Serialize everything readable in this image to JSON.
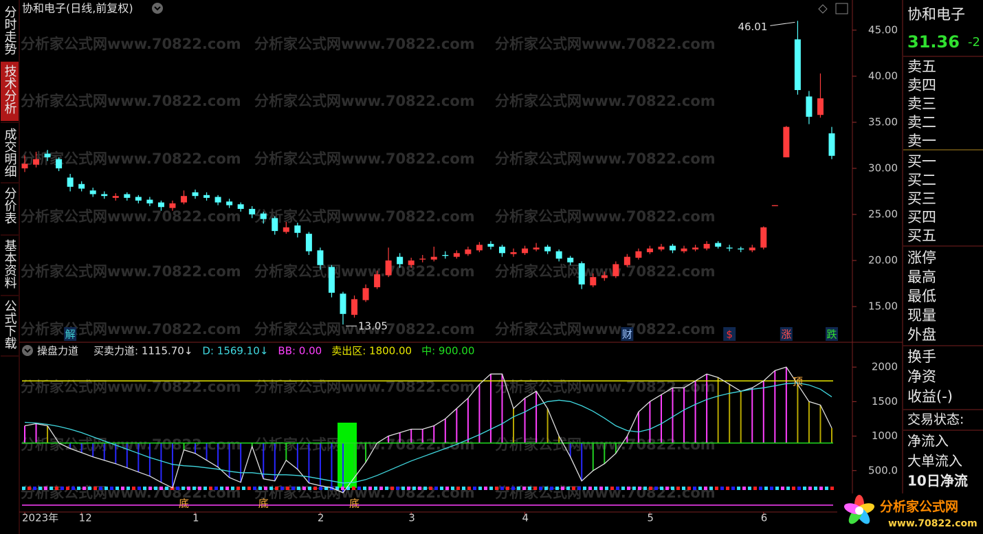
{
  "tabs": [
    "分时走势",
    "技术分析",
    "成交明细",
    "分价表",
    "基本资料",
    "公式下载"
  ],
  "active_tab": 1,
  "watermark": "分析家公式网www.70822.com",
  "chart_data": [
    {
      "type": "candlestick",
      "title": "协和电子(日线,前复权)",
      "categories": [
        "2023年",
        null,
        null,
        null,
        null,
        "12",
        null,
        null,
        null,
        null,
        null,
        null,
        null,
        null,
        null,
        "1",
        null,
        null,
        null,
        null,
        null,
        null,
        null,
        null,
        null,
        null,
        "2",
        null,
        null,
        null,
        null,
        null,
        null,
        null,
        "3",
        null,
        null,
        null,
        null,
        null,
        null,
        null,
        null,
        null,
        "4",
        null,
        null,
        null,
        null,
        null,
        null,
        null,
        null,
        null,
        null,
        "5",
        null,
        null,
        null,
        null,
        null,
        null,
        null,
        null,
        null,
        "6",
        null,
        null,
        null,
        null,
        null,
        null
      ],
      "open": [
        30,
        30.4,
        31.6,
        31,
        29,
        28.3,
        27.6,
        27.2,
        26.8,
        27.2,
        26.9,
        26.6,
        26.3,
        25.7,
        26.3,
        27.4,
        27.1,
        26.9,
        26.4,
        26.1,
        25.6,
        25.1,
        24.6,
        23.1,
        23.8,
        22.9,
        21.1,
        19.3,
        16.4,
        14.1,
        15.7,
        17.1,
        18.4,
        20.4,
        19.5,
        20.1,
        20.1,
        20.6,
        20.4,
        20.7,
        21.1,
        21.8,
        21.5,
        20.7,
        20.8,
        21.2,
        21.5,
        21,
        20.3,
        19.7,
        17.3,
        18.1,
        18.3,
        19.5,
        20.3,
        20.9,
        21.2,
        21.6,
        21,
        21.2,
        21.3,
        21.9,
        21.4,
        21.3,
        21.1,
        21.4,
        25.9,
        31.2,
        44,
        37.8,
        35.8,
        33.8
      ],
      "high": [
        31.4,
        31.8,
        32,
        31.2,
        29.4,
        28.6,
        27.9,
        27.5,
        27.3,
        27.4,
        27.1,
        26.9,
        26.5,
        26.5,
        27.6,
        27.7,
        27.4,
        27.1,
        26.7,
        26.3,
        25.9,
        25.3,
        24.8,
        24.2,
        24.1,
        23.1,
        21.4,
        19.5,
        16.6,
        16.2,
        17.4,
        18.9,
        21.4,
        20.8,
        20.3,
        20.6,
        21.5,
        21,
        21.1,
        21.5,
        22,
        22.1,
        21.7,
        21.3,
        21.6,
        21.9,
        21.7,
        21.2,
        20.5,
        19.9,
        18.6,
        18.8,
        19.9,
        20.7,
        21.3,
        21.6,
        21.8,
        21.8,
        21.6,
        21.7,
        22.1,
        22.1,
        21.7,
        21.5,
        21.7,
        23.7,
        26,
        34.6,
        46.01,
        38.4,
        40.3,
        34.5
      ],
      "low": [
        29.6,
        30.1,
        30.8,
        29.7,
        27.5,
        27.5,
        26.9,
        26.7,
        26.5,
        26.5,
        26.2,
        25.9,
        25.4,
        25.4,
        26.1,
        26.7,
        26.5,
        26,
        25.7,
        25.3,
        24.6,
        24,
        22.8,
        22.9,
        22.5,
        20.6,
        19,
        16,
        13.05,
        13.8,
        15.5,
        16.9,
        18.2,
        19.2,
        19.2,
        19.8,
        19.9,
        20.2,
        20.2,
        20.5,
        20.9,
        21.2,
        20.4,
        20.4,
        20.6,
        21,
        20.7,
        19.9,
        19.5,
        16.9,
        17.1,
        17.8,
        18.1,
        19.3,
        20.1,
        20.7,
        21,
        20.8,
        20.8,
        21,
        21.1,
        21.3,
        21,
        20.9,
        20.9,
        21.2,
        25.9,
        31.2,
        38,
        34.8,
        35.5,
        31
      ],
      "close": [
        30.5,
        31,
        31.2,
        30,
        28,
        27.8,
        27.2,
        27,
        27,
        26.8,
        26.5,
        26.2,
        25.8,
        26.2,
        27,
        27,
        26.8,
        26.3,
        26,
        25.6,
        25,
        24.5,
        23.2,
        23.6,
        23,
        21,
        19.5,
        16.5,
        14.2,
        15.8,
        17,
        18.5,
        20,
        19.6,
        20,
        20.2,
        20.4,
        20.5,
        20.8,
        21.2,
        21.7,
        21.5,
        20.8,
        20.9,
        21.3,
        21.4,
        21,
        20.2,
        19.8,
        17.4,
        18.2,
        18.4,
        19.6,
        20.4,
        21,
        21.3,
        21.5,
        21.1,
        21.3,
        21.4,
        21.8,
        21.5,
        21.3,
        21.2,
        21.4,
        23.6,
        26,
        34.5,
        38.5,
        35.6,
        37.6,
        31.36
      ],
      "up_color": "#ff3c3c",
      "down_color": "#54ffff",
      "ylim": [
        11.2,
        47.9
      ],
      "yticks": [
        {
          "value": 15,
          "label": "15.00"
        },
        {
          "value": 20,
          "label": "20.00"
        },
        {
          "value": 25,
          "label": "25.00"
        },
        {
          "value": 30,
          "label": "30.00"
        },
        {
          "value": 35,
          "label": "35.00"
        },
        {
          "value": 40,
          "label": "40.00"
        },
        {
          "value": 45,
          "label": "45.00"
        }
      ],
      "events": [
        {
          "index": 4,
          "label": "解",
          "color": "#40d0d0"
        },
        {
          "index": 53,
          "label": "财",
          "color": "#a0c8ff"
        },
        {
          "index": 62,
          "label": "$",
          "color": "#ff3030"
        },
        {
          "index": 67,
          "label": "涨",
          "color": "#ff5050"
        },
        {
          "index": 71,
          "label": "跌",
          "color": "#30e030"
        }
      ]
    },
    {
      "type": "indicator",
      "title": "操盘力道",
      "series": [
        {
          "name": "买卖力道: 1115.70↓",
          "color": "#e0e0e0",
          "values": [
            1150,
            1180,
            1150,
            900,
            820,
            760,
            700,
            650,
            600,
            540,
            480,
            420,
            330,
            250,
            800,
            750,
            650,
            550,
            400,
            330,
            850,
            380,
            350,
            650,
            520,
            320,
            280,
            250,
            180,
            400,
            620,
            900,
            1000,
            1050,
            1100,
            1100,
            1150,
            1250,
            1400,
            1550,
            1750,
            1900,
            1900,
            1400,
            1550,
            1650,
            1400,
            1000,
            700,
            350,
            500,
            600,
            750,
            1000,
            1350,
            1500,
            1600,
            1700,
            1700,
            1800,
            1900,
            1850,
            1750,
            1650,
            1700,
            1800,
            1950,
            2000,
            1750,
            1500,
            1450,
            1115.7
          ]
        },
        {
          "name": "D: 1569.10↓",
          "color": "#40d8e0",
          "values": [
            1200,
            1190,
            1170,
            1140,
            1100,
            1050,
            990,
            930,
            870,
            810,
            750,
            690,
            640,
            590,
            570,
            560,
            540,
            520,
            490,
            470,
            470,
            450,
            440,
            440,
            430,
            410,
            380,
            350,
            320,
            330,
            370,
            430,
            500,
            570,
            640,
            700,
            760,
            820,
            880,
            950,
            1020,
            1100,
            1180,
            1280,
            1350,
            1440,
            1500,
            1520,
            1500,
            1440,
            1360,
            1260,
            1150,
            1080,
            1060,
            1100,
            1180,
            1280,
            1380,
            1460,
            1530,
            1580,
            1620,
            1650,
            1680,
            1700,
            1730,
            1760,
            1770,
            1740,
            1680,
            1569.1
          ]
        }
      ],
      "lines": [
        {
          "name": "BB: 0.00",
          "color": "#ff40ff",
          "value": 0
        },
        {
          "name": "卖出区: 1800.00",
          "color": "#e8e800",
          "value": 1800
        },
        {
          "name": "中: 900.00",
          "color": "#20e020",
          "value": 900
        }
      ],
      "bar_colors": {
        "rise_above": "#ff40ff",
        "fall_above": "#b8a800",
        "fall_below": "#2828ff",
        "rise_below": "#20d020"
      },
      "ylim": [
        -100,
        2340
      ],
      "yticks": [
        {
          "value": 500,
          "label": "500.0"
        },
        1000,
        1500,
        2000
      ],
      "signals": [
        {
          "index": 14,
          "label": "底",
          "position": "bottom"
        },
        {
          "index": 21,
          "label": "底",
          "position": "bottom"
        },
        {
          "index": 29,
          "label": "底",
          "position": "bottom"
        },
        {
          "index": 68,
          "label": "顶",
          "position": "top"
        }
      ]
    }
  ],
  "quote": {
    "name": "协和电子",
    "price": 31.36,
    "change": "-2",
    "sell": [
      "卖五",
      "卖四",
      "卖三",
      "卖二",
      "卖一"
    ],
    "buy": [
      "买一",
      "买二",
      "买三",
      "买四",
      "买五"
    ],
    "stats": [
      "涨停",
      "最高",
      "最低",
      "现量",
      "外盘"
    ],
    "more": [
      "换手",
      "净资",
      "收益(-)"
    ],
    "status": "交易状态:",
    "flow": [
      "净流入",
      "大单流入",
      "10日净流"
    ]
  },
  "logo": {
    "name": "分析家公式网",
    "url": "www.70822.com"
  }
}
